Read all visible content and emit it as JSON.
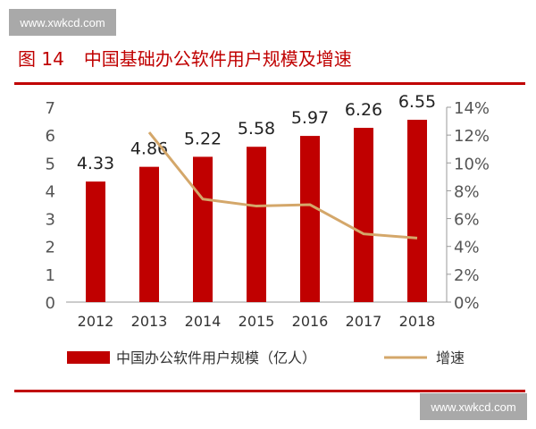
{
  "watermark": "www.xwkcd.com",
  "figure_label": "图 14",
  "chart_data": {
    "type": "bar+line",
    "title": "中国基础办公软件用户规模及增速",
    "categories": [
      "2012",
      "2013",
      "2014",
      "2015",
      "2016",
      "2017",
      "2018"
    ],
    "series": [
      {
        "name": "中国办公软件用户规模（亿人）",
        "type": "bar",
        "axis": "left",
        "color": "#c00000",
        "values": [
          4.33,
          4.86,
          5.22,
          5.58,
          5.97,
          6.26,
          6.55
        ]
      },
      {
        "name": "增速",
        "type": "line",
        "axis": "right",
        "color": "#d4a76a",
        "values": [
          null,
          12.2,
          7.4,
          6.9,
          7.0,
          4.9,
          4.6
        ]
      }
    ],
    "left_axis": {
      "ylim": [
        0,
        7
      ],
      "ticks": [
        "0",
        "1",
        "2",
        "3",
        "4",
        "5",
        "6",
        "7"
      ]
    },
    "right_axis": {
      "ylim": [
        0,
        14
      ],
      "ticks": [
        "0%",
        "2%",
        "4%",
        "6%",
        "8%",
        "10%",
        "12%",
        "14%"
      ]
    },
    "data_labels": [
      "4.33",
      "4.86",
      "5.22",
      "5.58",
      "5.97",
      "6.26",
      "6.55"
    ],
    "legend_position": "bottom",
    "grid": false
  }
}
